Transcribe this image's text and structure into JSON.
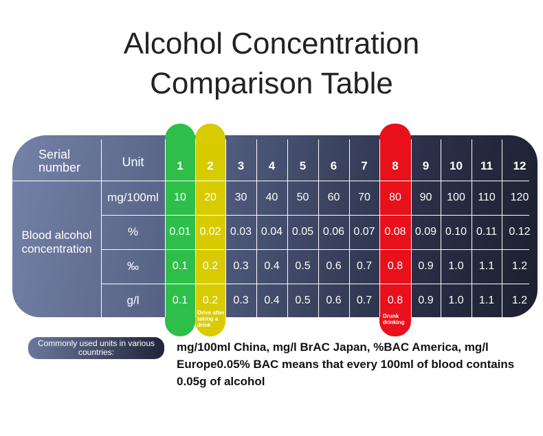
{
  "title_line1": "Alcohol Concentration",
  "title_line2": "Comparison Table",
  "table": {
    "serial_label": "Serial number",
    "unit_label": "Unit",
    "group_label": "Blood alcohol concentration",
    "serials": [
      "1",
      "2",
      "3",
      "4",
      "5",
      "6",
      "7",
      "8",
      "9",
      "10",
      "11",
      "12"
    ],
    "rows": [
      {
        "unit": "mg/100ml",
        "values": [
          "10",
          "20",
          "30",
          "40",
          "50",
          "60",
          "70",
          "80",
          "90",
          "100",
          "110",
          "120"
        ]
      },
      {
        "unit": "%",
        "values": [
          "0.01",
          "0.02",
          "0.03",
          "0.04",
          "0.05",
          "0.06",
          "0.07",
          "0.08",
          "0.09",
          "0.10",
          "0.11",
          "0.12"
        ]
      },
      {
        "unit": "‰",
        "values": [
          "0.1",
          "0.2",
          "0.3",
          "0.4",
          "0.5",
          "0.6",
          "0.7",
          "0.8",
          "0.9",
          "1.0",
          "1.1",
          "1.2"
        ]
      },
      {
        "unit": "g/l",
        "values": [
          "0.1",
          "0.2",
          "0.3",
          "0.4",
          "0.5",
          "0.6",
          "0.7",
          "0.8",
          "0.9",
          "1.0",
          "1.1",
          "1.2"
        ]
      }
    ],
    "highlights": [
      {
        "col": 0,
        "color": "#2dbf4a"
      },
      {
        "col": 1,
        "color": "#d8cc00"
      },
      {
        "col": 7,
        "color": "#e8101a"
      }
    ],
    "note_drive": "Drive after taking a drink",
    "note_drunk": "Drunk drinking"
  },
  "footer": {
    "badge": "Commonly used units in various countries:",
    "description": "mg/100ml China, mg/l BrAC Japan, %BAC America, mg/l Europe0.05% BAC means that every 100ml of blood contains 0.05g of alcohol"
  }
}
